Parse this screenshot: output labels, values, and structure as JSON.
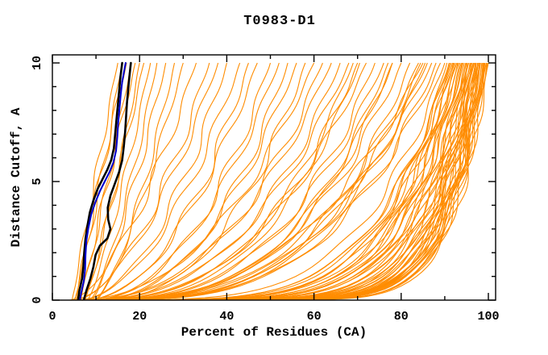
{
  "window_title": "T0983-D1",
  "colors": {
    "background": "#ffffff",
    "axis": "#000000",
    "orange_models": "#ff8c00",
    "highlight_black": "#000000",
    "highlight_blue": "#0000cd"
  },
  "chart_data": {
    "type": "line",
    "title": "T0983-D1",
    "xlabel": "Percent of Residues (CA)",
    "ylabel": "Distance Cutoff, A",
    "xlim": [
      0,
      100
    ],
    "ylim": [
      0,
      10
    ],
    "grid": false,
    "legend_position": "none",
    "x_ticks": {
      "major": [
        0,
        20,
        40,
        60,
        80,
        100
      ],
      "minor": [
        10,
        30,
        50,
        70,
        90
      ],
      "labels": [
        "0",
        "20",
        "40",
        "60",
        "80",
        "100"
      ]
    },
    "y_ticks": {
      "major": [
        0,
        5,
        10
      ],
      "minor": [
        1,
        2,
        3,
        4,
        6,
        7,
        8,
        9
      ],
      "labels": [
        "0",
        "5",
        "10"
      ]
    },
    "series": [
      {
        "name": "orange-model-curves",
        "color": "#ff8c00",
        "width": 1.1,
        "encoding": "each curve = [start_pct_at_y0, end_pct_at_y10, shape_exponent_p, wiggle_amp, wiggle_phase]; x(y) = start + (end-start)*(y/10)^(1/p)",
        "curves": [
          [
            4.5,
            15,
            1.0,
            0.5,
            0.5
          ],
          [
            5,
            16,
            1.15,
            0.5,
            1.3
          ],
          [
            5.5,
            17,
            0.9,
            0.6,
            2.1
          ],
          [
            6,
            18,
            1.2,
            0.5,
            2.9
          ],
          [
            6.5,
            19,
            1.0,
            0.6,
            3.7
          ],
          [
            7,
            20,
            1.3,
            0.5,
            4.5
          ],
          [
            7.5,
            21,
            1.1,
            0.6,
            5.3
          ],
          [
            8,
            22.5,
            1.25,
            0.5,
            0.9
          ],
          [
            8.5,
            24,
            1.4,
            0.5,
            1.7
          ],
          [
            9,
            26,
            1.3,
            0.7,
            2.5
          ],
          [
            9.5,
            28,
            1.5,
            0.6,
            3.3
          ],
          [
            10,
            30,
            1.35,
            0.6,
            4.1
          ],
          [
            4,
            33,
            1.6,
            1.0,
            0.3
          ],
          [
            4.5,
            36,
            1.8,
            1.1,
            1.0
          ],
          [
            5,
            38,
            1.7,
            0.9,
            1.8
          ],
          [
            5.5,
            40,
            2.0,
            1.1,
            2.5
          ],
          [
            6,
            43,
            1.9,
            1.0,
            3.3
          ],
          [
            6.5,
            45,
            2.2,
            1.2,
            4.1
          ],
          [
            7,
            47,
            2.0,
            1.0,
            4.9
          ],
          [
            7.5,
            50,
            2.3,
            1.2,
            0.6
          ],
          [
            8,
            52,
            2.1,
            0.9,
            1.4
          ],
          [
            8.5,
            54,
            2.4,
            1.1,
            2.2
          ],
          [
            9,
            56,
            2.2,
            1.0,
            3.0
          ],
          [
            9.5,
            58,
            2.5,
            1.2,
            3.8
          ],
          [
            4,
            60,
            2.3,
            1.0,
            4.6
          ],
          [
            4.5,
            62,
            2.6,
            1.2,
            0.2
          ],
          [
            5,
            64,
            2.4,
            0.9,
            1.1
          ],
          [
            5.5,
            66,
            2.7,
            1.1,
            1.9
          ],
          [
            6,
            68,
            2.5,
            1.0,
            2.7
          ],
          [
            6.5,
            70,
            2.8,
            1.2,
            3.5
          ],
          [
            7,
            72,
            2.6,
            1.0,
            4.3
          ],
          [
            7.5,
            74,
            3.0,
            1.2,
            0.9
          ],
          [
            8,
            76,
            2.8,
            1.1,
            1.7
          ],
          [
            8.5,
            78,
            3.2,
            1.0,
            2.5
          ],
          [
            9,
            80,
            3.0,
            1.2,
            3.3
          ],
          [
            9.5,
            82,
            3.4,
            1.1,
            4.1
          ],
          [
            5,
            84,
            3.2,
            1.0,
            4.9
          ],
          [
            5.5,
            85,
            2.9,
            1.2,
            0.4
          ],
          [
            6,
            86,
            3.3,
            1.1,
            1.2
          ],
          [
            6.5,
            87,
            3.1,
            1.0,
            2.0
          ],
          [
            7,
            88,
            3.5,
            1.2,
            2.8
          ],
          [
            7.5,
            89,
            3.3,
            1.1,
            3.6
          ],
          [
            6,
            69,
            2.9,
            0.8,
            1.5
          ],
          [
            6.5,
            70.5,
            3.0,
            0.8,
            2.3
          ],
          [
            7,
            77,
            3.2,
            0.9,
            3.1
          ],
          [
            7.5,
            78,
            3.1,
            0.8,
            3.9
          ],
          [
            8,
            84.5,
            3.3,
            0.9,
            4.7
          ],
          [
            8.5,
            85.5,
            3.4,
            0.8,
            0.7
          ],
          [
            4,
            90,
            4.5,
            1.0,
            0.5
          ],
          [
            4.5,
            91,
            5.0,
            0.9,
            1.2
          ],
          [
            5,
            92,
            5.5,
            1.0,
            1.9
          ],
          [
            5.5,
            93,
            6.0,
            0.8,
            2.6
          ],
          [
            6,
            94,
            6.5,
            1.0,
            3.3
          ],
          [
            6.5,
            95,
            7.0,
            0.9,
            4.0
          ],
          [
            7,
            95.5,
            7.5,
            0.8,
            4.7
          ],
          [
            7.5,
            96,
            8.0,
            1.0,
            5.4
          ],
          [
            8,
            96.5,
            8.5,
            0.9,
            0.3
          ],
          [
            8.5,
            97,
            9.0,
            0.8,
            1.0
          ],
          [
            9,
            97.5,
            9.5,
            1.0,
            1.7
          ],
          [
            9.5,
            98,
            10,
            0.9,
            2.4
          ],
          [
            10,
            98.5,
            10.5,
            0.8,
            3.1
          ],
          [
            10.5,
            99,
            11,
            0.9,
            3.8
          ],
          [
            11,
            99.5,
            10.8,
            0.8,
            4.5
          ],
          [
            11.5,
            100,
            11,
            0.9,
            5.2
          ],
          [
            4,
            98,
            10.5,
            1.0,
            0.8
          ],
          [
            4.5,
            97.2,
            10,
            0.9,
            1.5
          ],
          [
            5,
            96.2,
            9.6,
            0.8,
            2.2
          ],
          [
            5.5,
            95.2,
            9,
            1.0,
            2.9
          ],
          [
            6,
            94.5,
            8,
            0.9,
            3.6
          ],
          [
            6.5,
            93.5,
            7,
            0.8,
            4.3
          ],
          [
            7,
            92.5,
            6.5,
            1.0,
            5.0
          ],
          [
            7.5,
            91.5,
            6,
            0.9,
            5.7
          ],
          [
            8,
            90.5,
            5.5,
            0.8,
            0.6
          ],
          [
            8.5,
            99.8,
            11,
            0.9,
            1.3
          ],
          [
            9,
            99.2,
            10.4,
            0.8,
            2.0
          ],
          [
            9.5,
            98.8,
            10,
            0.9,
            2.7
          ],
          [
            10,
            98.2,
            9.7,
            0.8,
            3.4
          ],
          [
            10.5,
            97.8,
            9.5,
            0.9,
            4.1
          ],
          [
            11,
            97.2,
            9,
            0.8,
            4.8
          ],
          [
            4,
            96.8,
            8.5,
            0.9,
            5.5
          ],
          [
            4.5,
            96.2,
            8,
            0.8,
            0.4
          ],
          [
            5,
            95.8,
            7.5,
            0.9,
            1.1
          ],
          [
            5.5,
            95.2,
            7,
            0.8,
            1.8
          ],
          [
            6,
            94.8,
            6.8,
            0.9,
            2.5
          ],
          [
            6.5,
            94.2,
            6.4,
            0.8,
            3.2
          ],
          [
            7,
            93.8,
            6.1,
            0.9,
            3.9
          ],
          [
            7.5,
            93.2,
            5.8,
            0.8,
            4.6
          ],
          [
            8,
            92.8,
            5.4,
            0.9,
            5.3
          ],
          [
            8.5,
            92.2,
            5.1,
            0.8,
            0.2
          ],
          [
            9,
            91.8,
            4.8,
            0.9,
            0.9
          ],
          [
            9.5,
            91.2,
            4.6,
            0.8,
            1.6
          ],
          [
            10,
            99.6,
            10.9,
            0.9,
            2.3
          ],
          [
            10.5,
            99.1,
            10.3,
            0.8,
            3.0
          ],
          [
            11,
            98.6,
            10.1,
            0.9,
            3.7
          ],
          [
            11.5,
            98.1,
            9.8,
            0.8,
            4.4
          ],
          [
            12,
            97.6,
            9.4,
            0.9,
            5.1
          ],
          [
            5,
            97.1,
            9.2,
            0.8,
            0.1
          ],
          [
            6,
            96.6,
            8.8,
            0.9,
            0.8
          ]
        ]
      },
      {
        "name": "highlight-black-model-1",
        "color": "#000000",
        "width": 2.6,
        "points": [
          [
            5.9,
            0
          ],
          [
            6.2,
            0.4
          ],
          [
            6.8,
            0.9
          ],
          [
            7.1,
            1.4
          ],
          [
            7.3,
            2.0
          ],
          [
            7.6,
            2.6
          ],
          [
            8.0,
            3.1
          ],
          [
            8.6,
            3.7
          ],
          [
            9.4,
            4.2
          ],
          [
            10.4,
            4.7
          ],
          [
            11.5,
            5.1
          ],
          [
            12.6,
            5.5
          ],
          [
            13.5,
            5.9
          ],
          [
            14.1,
            6.4
          ],
          [
            14.4,
            7.0
          ],
          [
            14.7,
            7.6
          ],
          [
            15.0,
            8.2
          ],
          [
            15.3,
            8.8
          ],
          [
            15.6,
            9.4
          ],
          [
            16.0,
            10
          ]
        ]
      },
      {
        "name": "highlight-black-model-2",
        "color": "#000000",
        "width": 2.6,
        "points": [
          [
            7.2,
            0
          ],
          [
            7.8,
            0.4
          ],
          [
            8.7,
            0.9
          ],
          [
            9.4,
            1.4
          ],
          [
            9.9,
            1.9
          ],
          [
            10.9,
            2.3
          ],
          [
            12.6,
            2.6
          ],
          [
            13.3,
            3.0
          ],
          [
            12.8,
            3.4
          ],
          [
            12.7,
            3.9
          ],
          [
            13.3,
            4.4
          ],
          [
            14.3,
            4.9
          ],
          [
            15.3,
            5.4
          ],
          [
            16.0,
            5.9
          ],
          [
            16.4,
            6.5
          ],
          [
            16.7,
            7.1
          ],
          [
            16.9,
            7.7
          ],
          [
            17.1,
            8.3
          ],
          [
            17.4,
            8.9
          ],
          [
            17.7,
            9.5
          ],
          [
            18.0,
            10
          ]
        ]
      },
      {
        "name": "highlight-blue-model",
        "color": "#0000cd",
        "width": 2.1,
        "points": [
          [
            6.3,
            0
          ],
          [
            6.6,
            0.3
          ],
          [
            7.2,
            0.8
          ],
          [
            7.5,
            1.3
          ],
          [
            7.6,
            1.9
          ],
          [
            7.8,
            2.5
          ],
          [
            8.2,
            3.0
          ],
          [
            8.9,
            3.6
          ],
          [
            9.8,
            4.1
          ],
          [
            10.9,
            4.6
          ],
          [
            12.0,
            5.0
          ],
          [
            13.1,
            5.4
          ],
          [
            14.0,
            5.8
          ],
          [
            14.6,
            6.3
          ],
          [
            14.9,
            6.9
          ],
          [
            15.1,
            7.5
          ],
          [
            15.4,
            8.1
          ],
          [
            15.7,
            8.7
          ],
          [
            16.0,
            9.2
          ],
          [
            16.5,
            9.7
          ],
          [
            16.8,
            10
          ]
        ]
      }
    ]
  }
}
